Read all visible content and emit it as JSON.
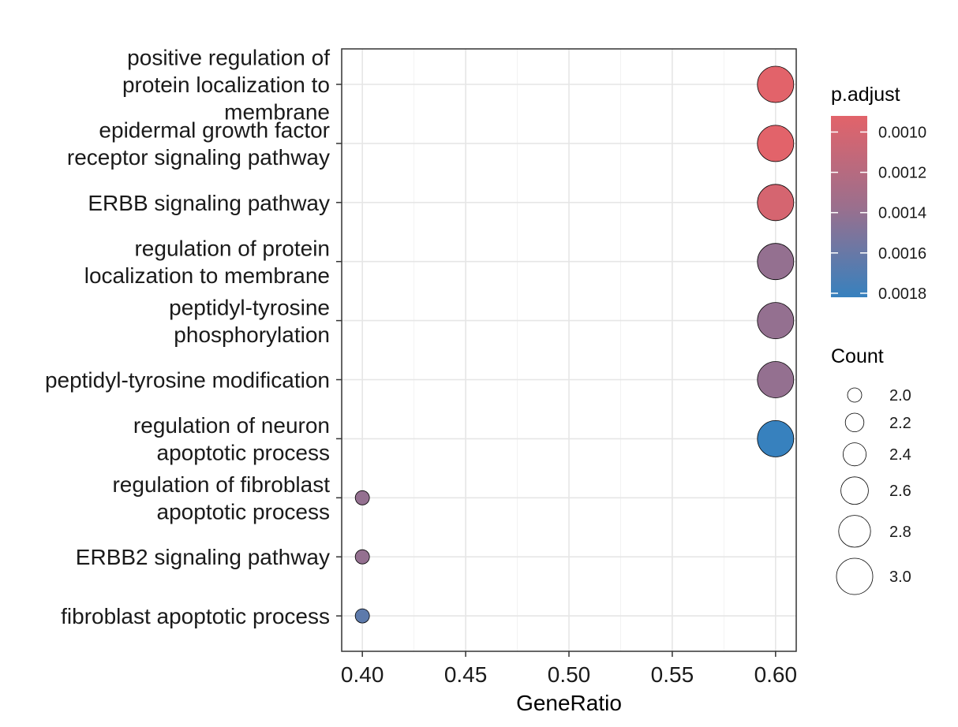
{
  "chart_data": {
    "type": "scatter",
    "xlabel": "GeneRatio",
    "ylabel": "",
    "xlim": [
      0.39,
      0.61
    ],
    "xticks": [
      0.4,
      0.45,
      0.5,
      0.55,
      0.6
    ],
    "xtick_labels": [
      "0.40",
      "0.45",
      "0.50",
      "0.55",
      "0.60"
    ],
    "grid": true,
    "categories": [
      [
        "positive regulation of",
        "protein localization to",
        "membrane"
      ],
      [
        "epidermal growth factor",
        "receptor signaling pathway"
      ],
      [
        "ERBB signaling pathway"
      ],
      [
        "regulation of protein",
        "localization to membrane"
      ],
      [
        "peptidyl-tyrosine",
        "phosphorylation"
      ],
      [
        "peptidyl-tyrosine modification"
      ],
      [
        "regulation of neuron",
        "apoptotic process"
      ],
      [
        "regulation of fibroblast",
        "apoptotic process"
      ],
      [
        "ERBB2 signaling pathway"
      ],
      [
        "fibroblast apoptotic process"
      ]
    ],
    "points": [
      {
        "x": 0.6,
        "count": 3,
        "p_adjust": 0.00092
      },
      {
        "x": 0.6,
        "count": 3,
        "p_adjust": 0.00092
      },
      {
        "x": 0.6,
        "count": 3,
        "p_adjust": 0.001
      },
      {
        "x": 0.6,
        "count": 3,
        "p_adjust": 0.0014
      },
      {
        "x": 0.6,
        "count": 3,
        "p_adjust": 0.0014
      },
      {
        "x": 0.6,
        "count": 3,
        "p_adjust": 0.0014
      },
      {
        "x": 0.6,
        "count": 3,
        "p_adjust": 0.00182
      },
      {
        "x": 0.4,
        "count": 2,
        "p_adjust": 0.0014
      },
      {
        "x": 0.4,
        "count": 2,
        "p_adjust": 0.0014
      },
      {
        "x": 0.4,
        "count": 2,
        "p_adjust": 0.00165
      }
    ],
    "color_legend": {
      "title": "p.adjust",
      "min": 0.00092,
      "max": 0.00182,
      "low_color": "#E2636A",
      "high_color": "#3781BE",
      "ticks": [
        0.001,
        0.0012,
        0.0014,
        0.0016,
        0.0018
      ],
      "tick_labels": [
        "0.0010",
        "0.0012",
        "0.0014",
        "0.0016",
        "0.0018"
      ]
    },
    "size_legend": {
      "title": "Count",
      "values": [
        2.0,
        2.2,
        2.4,
        2.6,
        2.8,
        3.0
      ],
      "labels": [
        "2.0",
        "2.2",
        "2.4",
        "2.6",
        "2.8",
        "3.0"
      ]
    },
    "legend_position": "right"
  }
}
